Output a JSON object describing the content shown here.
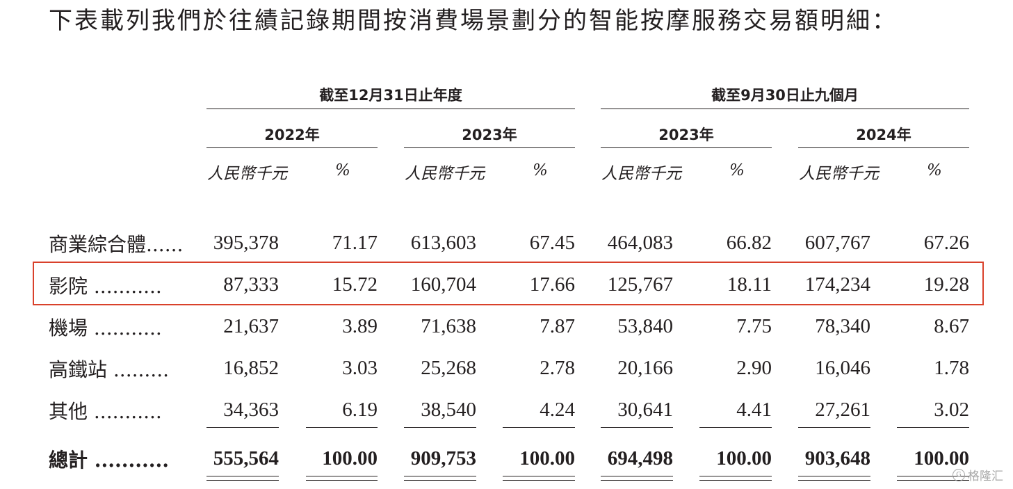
{
  "intro_text": "下表載列我們於往績記錄期間按消費場景劃分的智能按摩服務交易額明細：",
  "groups": [
    "截至12月31日止年度",
    "截至9月30日止九個月"
  ],
  "years": [
    "2022年",
    "2023年",
    "2023年",
    "2024年"
  ],
  "units": {
    "amount": "人民幣千元",
    "pct": "%"
  },
  "rows": [
    {
      "label": "商業綜合體......",
      "values": [
        "395,378",
        "71.17",
        "613,603",
        "67.45",
        "464,083",
        "66.82",
        "607,767",
        "67.26"
      ]
    },
    {
      "label": "影院 ...........",
      "values": [
        "87,333",
        "15.72",
        "160,704",
        "17.66",
        "125,767",
        "18.11",
        "174,234",
        "19.28"
      ]
    },
    {
      "label": "機場 ...........",
      "values": [
        "21,637",
        "3.89",
        "71,638",
        "7.87",
        "53,840",
        "7.75",
        "78,340",
        "8.67"
      ]
    },
    {
      "label": "高鐵站 .........",
      "values": [
        "16,852",
        "3.03",
        "25,268",
        "2.78",
        "20,166",
        "2.90",
        "16,046",
        "1.78"
      ]
    },
    {
      "label": "其他 ...........",
      "values": [
        "34,363",
        "6.19",
        "38,540",
        "4.24",
        "30,641",
        "4.41",
        "27,261",
        "3.02"
      ]
    }
  ],
  "total": {
    "label": "總計 ...........",
    "values": [
      "555,564",
      "100.00",
      "909,753",
      "100.00",
      "694,498",
      "100.00",
      "903,648",
      "100.00"
    ]
  },
  "highlight_color": "#d9412b",
  "watermark": {
    "icon": "gelonghui-logo-icon",
    "logo_glyph": "G",
    "text": "格隆汇"
  }
}
